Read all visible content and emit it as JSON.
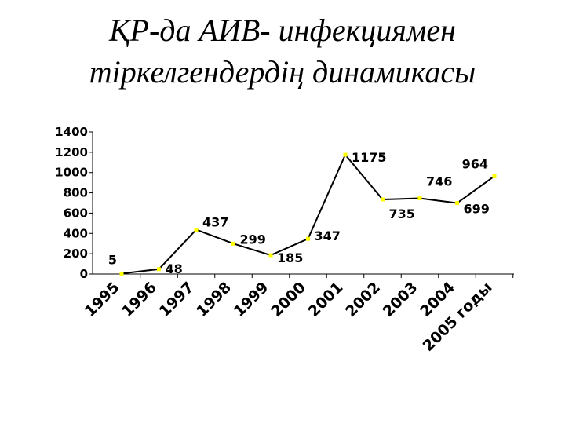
{
  "chart_data": {
    "type": "line",
    "title": [
      "ҚР-да  АИВ- инфекциямен",
      "тіркелгендердің динамикасы"
    ],
    "categories": [
      "1995",
      "1996",
      "1997",
      "1998",
      "1999",
      "2000",
      "2001",
      "2002",
      "2003",
      "2004",
      "2005 годы"
    ],
    "values": [
      5,
      48,
      437,
      299,
      185,
      347,
      1175,
      735,
      746,
      699,
      964
    ],
    "color": "#000000",
    "marker_color": "#ffff00",
    "ylim": [
      0,
      1400
    ],
    "yticks": [
      0,
      200,
      400,
      600,
      800,
      1000,
      1200,
      1400
    ],
    "grid": false
  }
}
